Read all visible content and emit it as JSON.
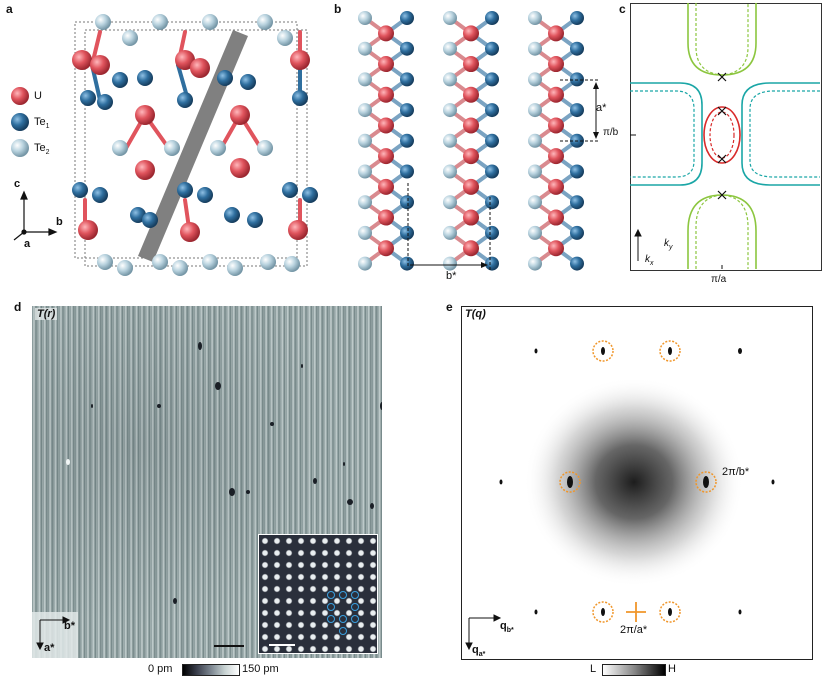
{
  "panels": {
    "a": "a",
    "b": "b",
    "c": "c",
    "d": "d",
    "e": "e"
  },
  "panel_a": {
    "legend": {
      "u": "U",
      "te1": "Te",
      "te1_sub": "1",
      "te2": "Te",
      "te2_sub": "2"
    },
    "axes": {
      "c": "c",
      "b": "b",
      "a": "a"
    },
    "colors": {
      "u": "#e0545d",
      "te1": "#2f6f9f",
      "te2": "#a9c9d8",
      "slab": "#7f7f7f"
    }
  },
  "panel_b": {
    "a_star": "a*",
    "b_star": "b*"
  },
  "panel_c": {
    "pi_over_b": "π/b",
    "pi_over_a": "π/a",
    "ky": "k",
    "ky_sub": "y",
    "kx": "k",
    "kx_sub": "x",
    "colors": {
      "green": "#8cc63f",
      "teal": "#1aa6a6",
      "red": "#d92b2b"
    }
  },
  "panel_d": {
    "title": "T(r)",
    "b_star": "b*",
    "a_star": "a*",
    "colorbar_min": "0 pm",
    "colorbar_max": "150 pm"
  },
  "panel_e": {
    "title": "T(q)",
    "label_b": "2π/b*",
    "label_a": "2π/a*",
    "q_b": "q",
    "q_b_sub": "b*",
    "q_a": "q",
    "q_a_sub": "a*",
    "colorbar_low": "L",
    "colorbar_high": "H",
    "accent": "#f0962a"
  }
}
